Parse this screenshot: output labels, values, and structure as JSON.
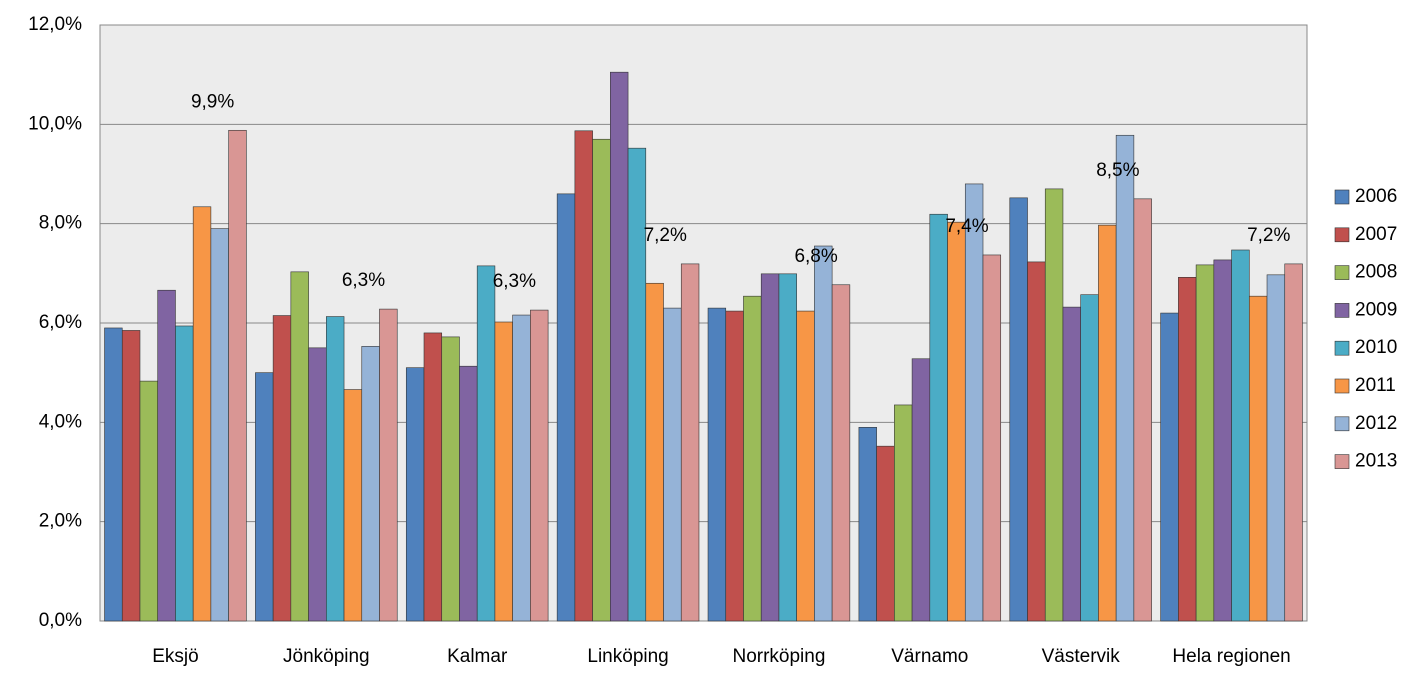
{
  "chart_data": {
    "type": "bar",
    "categories": [
      "Eksjö",
      "Jönköping",
      "Kalmar",
      "Linköping",
      "Norrköping",
      "Värnamo",
      "Västervik",
      "Hela regionen"
    ],
    "series": [
      {
        "name": "2006",
        "color": "#4f81bd",
        "values": [
          5.9,
          5.0,
          5.1,
          8.6,
          6.3,
          3.9,
          8.52,
          6.2
        ]
      },
      {
        "name": "2007",
        "color": "#c0504d",
        "values": [
          5.85,
          6.15,
          5.8,
          9.87,
          6.24,
          3.52,
          7.23,
          6.92
        ]
      },
      {
        "name": "2008",
        "color": "#9bbb59",
        "values": [
          4.83,
          7.03,
          5.72,
          9.7,
          6.54,
          4.35,
          8.7,
          7.17
        ]
      },
      {
        "name": "2009",
        "color": "#8064a2",
        "values": [
          6.66,
          5.5,
          5.13,
          11.05,
          6.99,
          5.28,
          6.32,
          7.27
        ]
      },
      {
        "name": "2010",
        "color": "#4bacc6",
        "values": [
          5.94,
          6.13,
          7.15,
          9.52,
          6.99,
          8.19,
          6.57,
          7.47
        ]
      },
      {
        "name": "2011",
        "color": "#f79646",
        "values": [
          8.34,
          4.66,
          6.02,
          6.8,
          6.24,
          8.03,
          7.97,
          6.54
        ]
      },
      {
        "name": "2012",
        "color": "#95b3d7",
        "values": [
          7.9,
          5.53,
          6.16,
          6.3,
          7.55,
          8.8,
          9.78,
          6.97
        ]
      },
      {
        "name": "2013",
        "color": "#d99694",
        "values": [
          9.88,
          6.28,
          6.26,
          7.19,
          6.77,
          7.37,
          8.5,
          7.19
        ],
        "value_labels": [
          "9,9%",
          "6,3%",
          "6,3%",
          "7,2%",
          "6,8%",
          "7,4%",
          "8,5%",
          "7,2%"
        ]
      }
    ],
    "ylim": [
      0,
      12
    ],
    "yticks": [
      {
        "value": 0,
        "label": "0,0%"
      },
      {
        "value": 2,
        "label": "2,0%"
      },
      {
        "value": 4,
        "label": "4,0%"
      },
      {
        "value": 6,
        "label": "6,0%"
      },
      {
        "value": 8,
        "label": "8,0%"
      },
      {
        "value": 10,
        "label": "10,0%"
      },
      {
        "value": 12,
        "label": "12,0%"
      }
    ],
    "grid": true,
    "legend": "right"
  }
}
